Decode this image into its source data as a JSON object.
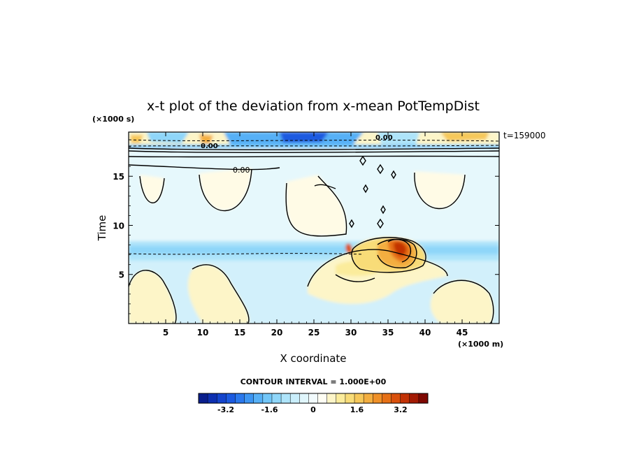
{
  "chart_data": {
    "type": "heatmap",
    "title": "x-t plot of the deviation from x-mean PotTempDist",
    "xlabel": "X coordinate",
    "ylabel": "Time",
    "x_unit": "(×1000 m)",
    "y_unit": "(×1000 s)",
    "time_stamp": "t=159000",
    "contour_label": "CONTOUR INTERVAL = 1.000E+00",
    "xlim": [
      0,
      50
    ],
    "ylim": [
      0,
      19.5
    ],
    "x_ticks": [
      5,
      10,
      15,
      20,
      25,
      30,
      35,
      40,
      45
    ],
    "y_ticks": [
      5,
      10,
      15
    ],
    "colorbar": {
      "range": [
        -4.2,
        4.2
      ],
      "ticks": [
        -3.2,
        -1.6,
        0,
        1.6,
        3.2
      ],
      "tick_labels": [
        "-3.2",
        "-1.6",
        "0",
        "1.6",
        "3.2"
      ],
      "colors": [
        "#0a1e8c",
        "#0d2fb0",
        "#1444cc",
        "#1b5ae0",
        "#2a78ec",
        "#3c95f2",
        "#56b0f6",
        "#72c6f8",
        "#8fd6f9",
        "#aee4fa",
        "#c9eefb",
        "#e0f6fc",
        "#f2fbfd",
        "#fffef4",
        "#fdf5c8",
        "#fbec9c",
        "#f8dc78",
        "#f6c85a",
        "#f3ae40",
        "#ef9028",
        "#e67016",
        "#d9500c",
        "#c23206",
        "#a31a04",
        "#7e0802"
      ]
    },
    "contour_labels": [
      "0.00",
      "0.00",
      "0.00"
    ]
  }
}
